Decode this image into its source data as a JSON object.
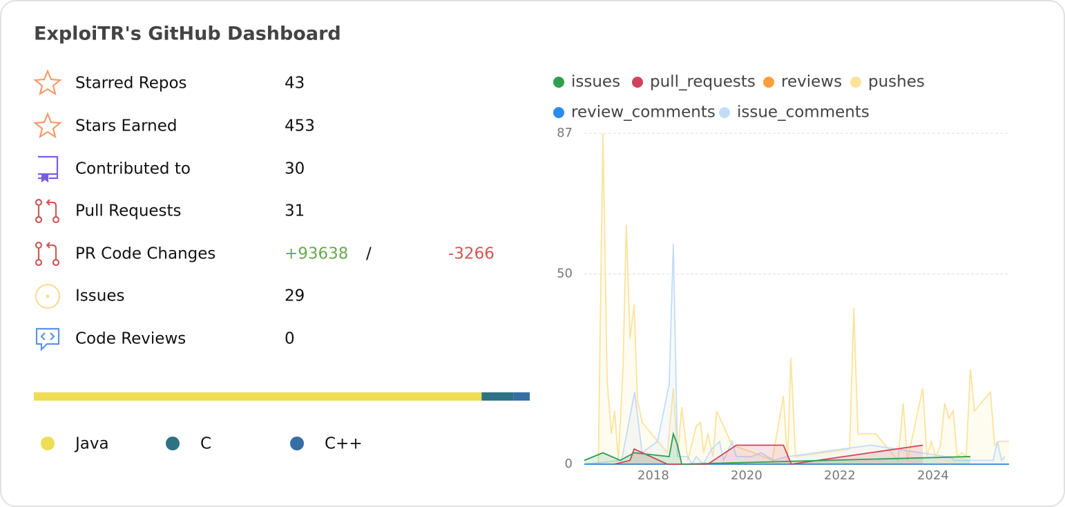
{
  "header": {
    "title": "ExploiTR's GitHub Dashboard"
  },
  "stats": [
    {
      "label": "Starred Repos",
      "value": "43"
    },
    {
      "label": "Stars Earned",
      "value": "453"
    },
    {
      "label": "Contributed to",
      "value": "30"
    },
    {
      "label": "Pull Requests",
      "value": "31"
    },
    {
      "label": "PR Code Changes",
      "added": "+93638",
      "separator": "/",
      "removed": "-3266"
    },
    {
      "label": "Issues",
      "value": "29"
    },
    {
      "label": "Code Reviews",
      "value": "0"
    }
  ],
  "languages": [
    {
      "name": "Java",
      "color": "#eedd55",
      "share": 90.3
    },
    {
      "name": "C",
      "color": "#2e7285",
      "share": 6.4
    },
    {
      "name": "C++",
      "color": "#356fa3",
      "share": 3.3
    }
  ],
  "chart_data": {
    "type": "line",
    "xlim": [
      2016.52,
      2025.63
    ],
    "xticks": [
      2018,
      2020,
      2022,
      2024
    ],
    "ylim": [
      0,
      87
    ],
    "yticks": [
      0,
      50,
      87
    ],
    "grid": true,
    "series": [
      {
        "name": "issues",
        "color": "#2e9e4f",
        "x": [
          2016.52,
          2016.92,
          2017.29,
          2017.59,
          2018.34,
          2018.43,
          2018.52,
          2018.61,
          2024.8
        ],
        "values": [
          1,
          3,
          1,
          3,
          2,
          8,
          5,
          0,
          2
        ]
      },
      {
        "name": "pull_requests",
        "color": "#d0435b",
        "x": [
          2017.17,
          2017.5,
          2017.59,
          2018.3,
          2019.17,
          2019.78,
          2020.79,
          2020.96,
          2023.78
        ],
        "values": [
          0,
          1,
          4,
          0,
          0,
          5,
          5,
          0,
          5
        ]
      },
      {
        "name": "reviews",
        "color": "#ff9e3d",
        "x": [
          2016.52,
          2025.63
        ],
        "values": [
          0,
          0
        ]
      },
      {
        "name": "pushes",
        "color": "#fbe39a",
        "x": [
          2016.82,
          2016.92,
          2017.01,
          2017.1,
          2017.17,
          2017.25,
          2017.35,
          2017.42,
          2017.5,
          2017.59,
          2017.66,
          2017.76,
          2018.3,
          2018.43,
          2018.52,
          2018.61,
          2018.74,
          2018.92,
          2019.01,
          2019.08,
          2019.17,
          2019.28,
          2019.36,
          2019.69,
          2020.16,
          2020.55,
          2020.79,
          2020.88,
          2020.95,
          2021.05,
          2022.21,
          2022.3,
          2022.39,
          2022.77,
          2023.25,
          2023.36,
          2023.45,
          2023.78,
          2023.87,
          2023.96,
          2024.06,
          2024.16,
          2024.25,
          2024.34,
          2024.43,
          2024.52,
          2024.62,
          2024.71,
          2024.8,
          2024.89,
          2025.23,
          2025.32,
          2025.41,
          2025.54,
          2025.63
        ],
        "values": [
          0,
          87,
          22,
          8,
          14,
          1,
          25,
          63,
          33,
          42,
          17,
          11,
          3,
          20,
          2,
          15,
          1,
          10,
          11,
          3,
          8,
          2,
          14,
          5,
          3,
          1,
          18,
          1,
          28,
          2,
          4,
          41,
          8,
          8,
          1,
          16,
          1,
          20,
          2,
          6,
          2,
          5,
          16,
          12,
          14,
          2,
          3,
          2,
          25,
          14,
          19,
          5,
          6,
          6,
          6
        ]
      },
      {
        "name": "review_comments",
        "color": "#2b8cee",
        "x": [
          2016.52,
          2025.63
        ],
        "values": [
          0,
          0
        ]
      },
      {
        "name": "issue_comments",
        "color": "#c3dcf7",
        "x": [
          2016.52,
          2017.32,
          2017.6,
          2017.76,
          2018.09,
          2018.34,
          2018.43,
          2018.52,
          2018.74,
          2018.83,
          2018.92,
          2019.07,
          2019.25,
          2019.42,
          2019.51,
          2019.69,
          2019.78,
          2020.11,
          2020.31,
          2020.58,
          2020.88,
          2022.66,
          2024.28,
          2024.37,
          2024.46,
          2025.29,
          2025.38,
          2025.47,
          2025.54
        ],
        "values": [
          0,
          1,
          19,
          3,
          6,
          21,
          58,
          2,
          2,
          0,
          2,
          0,
          4,
          6,
          1,
          6,
          2,
          2,
          3,
          1,
          2,
          5,
          2,
          2,
          1,
          1,
          6,
          1,
          2
        ]
      }
    ]
  }
}
